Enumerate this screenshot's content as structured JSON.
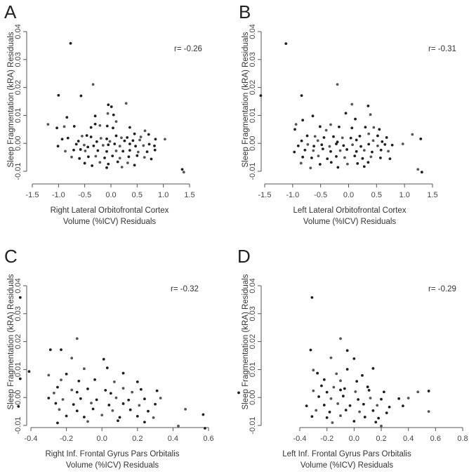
{
  "chart_data": [
    {
      "type": "scatter",
      "panel": "A",
      "annotation": "r= -0.26",
      "xlabel": [
        "Right Lateral Orbitofrontal Cortex",
        "Volume (%ICV) Residuals"
      ],
      "ylabel": "Sleep Fragmentation (kRA) Residuals",
      "xlim": [
        -1.5,
        1.5
      ],
      "ylim": [
        -0.01,
        0.04
      ],
      "xticks": [
        "-1.5",
        "-1.0",
        "-0.5",
        "0.0",
        "0.5",
        "1.0",
        "1.5"
      ],
      "yticks": [
        "-0.01",
        "0.00",
        "0.01",
        "0.02",
        "0.03",
        "0.04"
      ],
      "grid": false,
      "points": [
        [
          -0.77,
          0.0358
        ],
        [
          -0.34,
          0.0211
        ],
        [
          -1.0,
          0.0172
        ],
        [
          -0.57,
          0.017
        ],
        [
          0.29,
          0.0143
        ],
        [
          -0.05,
          0.0138
        ],
        [
          0.01,
          0.0131
        ],
        [
          -0.06,
          0.0107
        ],
        [
          0.05,
          0.0102
        ],
        [
          -0.3,
          0.0098
        ],
        [
          -1.2,
          0.0068
        ],
        [
          -0.84,
          0.0093
        ],
        [
          -0.3,
          0.0069
        ],
        [
          0.1,
          0.0078
        ],
        [
          -0.07,
          0.0062
        ],
        [
          -1.03,
          0.0055
        ],
        [
          -0.89,
          0.006
        ],
        [
          -0.7,
          0.0061
        ],
        [
          -0.38,
          0.0057
        ],
        [
          -0.21,
          0.0064
        ],
        [
          0.04,
          0.0055
        ],
        [
          0.36,
          0.0057
        ],
        [
          0.65,
          0.0045
        ],
        [
          -0.93,
          0.0015
        ],
        [
          -0.82,
          0.0019
        ],
        [
          -0.55,
          0.0026
        ],
        [
          -0.46,
          0.0028
        ],
        [
          -0.38,
          0.0023
        ],
        [
          -0.19,
          0.0018
        ],
        [
          -0.08,
          0.0016
        ],
        [
          0.1,
          0.0027
        ],
        [
          0.2,
          0.002
        ],
        [
          0.31,
          0.0021
        ],
        [
          0.45,
          0.0034
        ],
        [
          0.57,
          0.0023
        ],
        [
          0.72,
          0.0032
        ],
        [
          0.85,
          0.0015
        ],
        [
          1.03,
          0.0015
        ],
        [
          -0.62,
          0.0008
        ],
        [
          -0.27,
          0.0006
        ],
        [
          -0.02,
          0.0007
        ],
        [
          0.26,
          0.0009
        ],
        [
          0.42,
          0.001
        ],
        [
          0.55,
          0.0012
        ],
        [
          -1.01,
          -0.001
        ],
        [
          -0.66,
          -0.0003
        ],
        [
          -0.51,
          -0.0006
        ],
        [
          -0.44,
          -0.0013
        ],
        [
          -0.33,
          -0.0009
        ],
        [
          -0.15,
          -0.0007
        ],
        [
          -0.05,
          -0.0005
        ],
        [
          0.07,
          -0.0002
        ],
        [
          0.17,
          -0.001
        ],
        [
          0.36,
          -0.0002
        ],
        [
          0.47,
          -0.001
        ],
        [
          0.62,
          -0.0008
        ],
        [
          0.73,
          -0.0003
        ],
        [
          0.83,
          -0.0009
        ],
        [
          -0.87,
          -0.0028
        ],
        [
          -0.71,
          -0.0024
        ],
        [
          -0.58,
          -0.0022
        ],
        [
          -0.49,
          -0.0027
        ],
        [
          -0.25,
          -0.0026
        ],
        [
          -0.08,
          -0.0029
        ],
        [
          0.1,
          -0.0027
        ],
        [
          0.23,
          -0.0028
        ],
        [
          0.36,
          -0.0025
        ],
        [
          0.52,
          -0.0031
        ],
        [
          0.69,
          -0.003
        ],
        [
          0.84,
          -0.0024
        ],
        [
          -0.75,
          -0.0049
        ],
        [
          -0.6,
          -0.0054
        ],
        [
          -0.43,
          -0.0048
        ],
        [
          -0.29,
          -0.0046
        ],
        [
          -0.12,
          -0.0052
        ],
        [
          0.03,
          -0.0045
        ],
        [
          0.17,
          -0.0053
        ],
        [
          0.34,
          -0.0048
        ],
        [
          0.5,
          -0.0044
        ],
        [
          0.64,
          -0.005
        ],
        [
          0.77,
          -0.0056
        ],
        [
          -0.5,
          -0.0071
        ],
        [
          -0.21,
          -0.0068
        ],
        [
          -0.05,
          -0.0074
        ],
        [
          0.13,
          -0.0066
        ],
        [
          0.32,
          -0.007
        ],
        [
          0.45,
          -0.0078
        ],
        [
          -0.08,
          -0.0087
        ],
        [
          0.21,
          -0.0085
        ],
        [
          -0.36,
          -0.008
        ],
        [
          1.36,
          -0.0093
        ],
        [
          1.39,
          -0.0103
        ]
      ]
    },
    {
      "type": "scatter",
      "panel": "B",
      "annotation": "r= -0.31",
      "xlabel": [
        "Left Lateral Orbitofrontal Cortex",
        "Volume (%ICV) Residuals"
      ],
      "ylabel": "Sleep Fragmentation (kRA) Residuals",
      "xlim": [
        -1.5,
        1.5
      ],
      "ylim": [
        -0.01,
        0.04
      ],
      "xticks": [
        "-1.5",
        "-1.0",
        "-0.5",
        "0.0",
        "0.5",
        "1.0",
        "1.5"
      ],
      "yticks": [
        "-0.01",
        "0.00",
        "0.01",
        "0.02",
        "0.03",
        "0.04"
      ],
      "grid": false,
      "points": [
        [
          -1.12,
          0.0357
        ],
        [
          -0.2,
          0.0211
        ],
        [
          -1.57,
          0.0171
        ],
        [
          -0.84,
          0.0171
        ],
        [
          0.06,
          0.014
        ],
        [
          0.35,
          0.0134
        ],
        [
          -0.05,
          0.0108
        ],
        [
          0.39,
          0.0103
        ],
        [
          -0.64,
          0.0098
        ],
        [
          0.12,
          0.0087
        ],
        [
          -0.94,
          0.0068
        ],
        [
          -0.82,
          0.0083
        ],
        [
          -0.51,
          0.006
        ],
        [
          -0.32,
          0.0067
        ],
        [
          -0.17,
          0.0059
        ],
        [
          -0.96,
          0.005
        ],
        [
          -0.4,
          0.0047
        ],
        [
          0.06,
          0.0055
        ],
        [
          0.3,
          0.0058
        ],
        [
          0.45,
          0.0057
        ],
        [
          0.55,
          0.005
        ],
        [
          -0.74,
          0.0027
        ],
        [
          -0.6,
          0.0025
        ],
        [
          -0.44,
          0.0021
        ],
        [
          -0.27,
          0.0024
        ],
        [
          -0.11,
          0.002
        ],
        [
          0.04,
          0.0019
        ],
        [
          0.2,
          0.0026
        ],
        [
          0.36,
          0.0034
        ],
        [
          0.52,
          0.0027
        ],
        [
          0.68,
          0.0021
        ],
        [
          1.14,
          0.0032
        ],
        [
          1.29,
          0.0016
        ],
        [
          -0.84,
          0.0009
        ],
        [
          -0.55,
          0.001
        ],
        [
          -0.2,
          0.0005
        ],
        [
          0.14,
          0.0012
        ],
        [
          0.44,
          0.001
        ],
        [
          0.6,
          0.0006
        ],
        [
          -0.9,
          -0.0009
        ],
        [
          -0.73,
          -0.0004
        ],
        [
          -0.62,
          -0.001
        ],
        [
          -0.48,
          -0.0005
        ],
        [
          -0.34,
          -0.0011
        ],
        [
          -0.22,
          -0.0002
        ],
        [
          -0.09,
          -0.0008
        ],
        [
          0.07,
          -0.0005
        ],
        [
          0.22,
          -0.0011
        ],
        [
          0.36,
          -0.0003
        ],
        [
          0.52,
          -0.0009
        ],
        [
          0.65,
          -0.0004
        ],
        [
          0.78,
          -0.0006
        ],
        [
          0.97,
          -0.0002
        ],
        [
          -0.97,
          -0.0031
        ],
        [
          -0.78,
          -0.0024
        ],
        [
          -0.63,
          -0.0026
        ],
        [
          -0.46,
          -0.002
        ],
        [
          -0.32,
          -0.0029
        ],
        [
          -0.15,
          -0.0026
        ],
        [
          -0.03,
          -0.0022
        ],
        [
          0.14,
          -0.0029
        ],
        [
          0.28,
          -0.0025
        ],
        [
          0.42,
          -0.0031
        ],
        [
          0.58,
          -0.0024
        ],
        [
          0.71,
          -0.0028
        ],
        [
          -0.82,
          -0.0049
        ],
        [
          -0.66,
          -0.0052
        ],
        [
          -0.54,
          -0.0045
        ],
        [
          -0.38,
          -0.0055
        ],
        [
          -0.22,
          -0.0047
        ],
        [
          -0.07,
          -0.0051
        ],
        [
          0.11,
          -0.0045
        ],
        [
          0.25,
          -0.0054
        ],
        [
          0.4,
          -0.0048
        ],
        [
          0.57,
          -0.0052
        ],
        [
          0.74,
          -0.0055
        ],
        [
          -0.85,
          -0.0071
        ],
        [
          -0.51,
          -0.0075
        ],
        [
          -0.31,
          -0.0068
        ],
        [
          -0.02,
          -0.0074
        ],
        [
          0.16,
          -0.0072
        ],
        [
          0.35,
          -0.0068
        ],
        [
          -0.68,
          -0.0088
        ],
        [
          -0.19,
          -0.0086
        ],
        [
          0.28,
          -0.0083
        ],
        [
          1.24,
          -0.0093
        ],
        [
          1.31,
          -0.0103
        ]
      ]
    },
    {
      "type": "scatter",
      "panel": "C",
      "annotation": "r= -0.32",
      "xlabel": [
        "Right Inf. Frontal Gyrus Pars Orbitalis",
        "Volume (%ICV) Residuals"
      ],
      "ylabel": "Sleep Fragmentation (kRA) Residuals",
      "xlim": [
        -0.5,
        0.8
      ],
      "ylim": [
        -0.01,
        0.04
      ],
      "xticks": [
        "-0.4",
        "-0.2",
        "0.0",
        "0.2",
        "0.4",
        "0.6"
      ],
      "yticks": [
        "-0.01",
        "0.00",
        "0.01",
        "0.02",
        "0.03",
        "0.04"
      ],
      "grid": false,
      "points": [
        [
          -0.46,
          0.0358
        ],
        [
          -0.14,
          0.0211
        ],
        [
          -0.29,
          0.0171
        ],
        [
          -0.23,
          0.0171
        ],
        [
          -0.17,
          0.0141
        ],
        [
          0.01,
          0.0137
        ],
        [
          -0.41,
          0.0093
        ],
        [
          -0.1,
          0.0103
        ],
        [
          0.03,
          0.0106
        ],
        [
          -0.46,
          0.0067
        ],
        [
          -0.3,
          0.008
        ],
        [
          -0.2,
          0.0084
        ],
        [
          0.12,
          0.0087
        ],
        [
          -0.23,
          0.0063
        ],
        [
          -0.13,
          0.0059
        ],
        [
          -0.04,
          0.0064
        ],
        [
          0.07,
          0.0056
        ],
        [
          0.2,
          0.0056
        ],
        [
          -0.25,
          0.0037
        ],
        [
          -0.17,
          0.0027
        ],
        [
          -0.08,
          0.0031
        ],
        [
          0.02,
          0.0026
        ],
        [
          0.12,
          0.0033
        ],
        [
          0.22,
          0.0029
        ],
        [
          0.31,
          0.0024
        ],
        [
          -0.27,
          0.0016
        ],
        [
          -0.14,
          0.0019
        ],
        [
          0.05,
          0.0015
        ],
        [
          0.17,
          0.0019
        ],
        [
          0.77,
          0.0017
        ],
        [
          -0.3,
          -0.0002
        ],
        [
          -0.22,
          -0.0007
        ],
        [
          -0.12,
          -0.0004
        ],
        [
          -0.03,
          -0.0008
        ],
        [
          0.08,
          -0.0001
        ],
        [
          0.15,
          -0.0009
        ],
        [
          0.24,
          -0.0005
        ],
        [
          0.33,
          -0.0002
        ],
        [
          -0.26,
          -0.0021
        ],
        [
          -0.16,
          -0.0025
        ],
        [
          -0.06,
          -0.002
        ],
        [
          0.04,
          -0.0027
        ],
        [
          0.12,
          -0.0022
        ],
        [
          0.21,
          -0.0028
        ],
        [
          0.3,
          -0.0024
        ],
        [
          -0.47,
          -0.0032
        ],
        [
          -0.24,
          -0.0043
        ],
        [
          -0.14,
          -0.0048
        ],
        [
          -0.05,
          -0.0041
        ],
        [
          0.06,
          -0.0047
        ],
        [
          0.16,
          -0.0044
        ],
        [
          0.26,
          -0.0049
        ],
        [
          0.47,
          -0.0042
        ],
        [
          -0.2,
          -0.0066
        ],
        [
          -0.1,
          -0.007
        ],
        [
          0.0,
          -0.0063
        ],
        [
          0.1,
          -0.0071
        ],
        [
          0.2,
          -0.0067
        ],
        [
          0.29,
          -0.0072
        ],
        [
          0.57,
          -0.0061
        ],
        [
          -0.25,
          -0.0091
        ],
        [
          -0.08,
          -0.0086
        ],
        [
          0.09,
          -0.0083
        ],
        [
          0.24,
          -0.0088
        ],
        [
          0.43,
          -0.0102
        ],
        [
          0.58,
          -0.011
        ]
      ]
    },
    {
      "type": "scatter",
      "panel": "D",
      "annotation": "r= -0.29",
      "xlabel": [
        "Left Inf. Frontal Gyrus Pars Orbitalis",
        "Volume (%ICV) Residuals"
      ],
      "ylabel": "Sleep Fragmentation (kRA) Residuals",
      "xlim": [
        -0.4,
        0.8
      ],
      "ylim": [
        -0.01,
        0.04
      ],
      "xticks": [
        "-0.4",
        "-0.2",
        "0.0",
        "0.2",
        "0.4",
        "0.6",
        "0.8"
      ],
      "yticks": [
        "-0.01",
        "0.00",
        "0.01",
        "0.02",
        "0.03",
        "0.04"
      ],
      "grid": false,
      "points": [
        [
          -0.31,
          0.0358
        ],
        [
          -0.1,
          0.0211
        ],
        [
          -0.32,
          0.017
        ],
        [
          -0.05,
          0.0168
        ],
        [
          -0.17,
          0.0142
        ],
        [
          0.0,
          0.0139
        ],
        [
          0.14,
          0.0104
        ],
        [
          -0.3,
          0.0098
        ],
        [
          -0.05,
          0.0101
        ],
        [
          -0.27,
          0.0087
        ],
        [
          -0.13,
          0.0085
        ],
        [
          0.06,
          0.0079
        ],
        [
          -0.22,
          0.0064
        ],
        [
          -0.1,
          0.006
        ],
        [
          0.02,
          0.0058
        ],
        [
          -0.24,
          0.0042
        ],
        [
          -0.15,
          0.0037
        ],
        [
          -0.07,
          0.0032
        ],
        [
          0.1,
          0.0038
        ],
        [
          -0.3,
          0.0024
        ],
        [
          -0.2,
          0.0019
        ],
        [
          -0.1,
          0.0027
        ],
        [
          0.01,
          0.0021
        ],
        [
          0.11,
          0.0026
        ],
        [
          0.22,
          0.002
        ],
        [
          0.47,
          0.002
        ],
        [
          0.55,
          0.0023
        ],
        [
          -0.26,
          0.0003
        ],
        [
          -0.17,
          -0.0004
        ],
        [
          -0.08,
          0.0005
        ],
        [
          0.03,
          -0.0007
        ],
        [
          0.12,
          -0.0002
        ],
        [
          0.2,
          -0.0006
        ],
        [
          0.33,
          -0.0004
        ],
        [
          0.4,
          -0.0002
        ],
        [
          -0.35,
          -0.003
        ],
        [
          -0.22,
          -0.0027
        ],
        [
          -0.12,
          -0.0022
        ],
        [
          -0.03,
          -0.0029
        ],
        [
          0.07,
          -0.0024
        ],
        [
          0.17,
          -0.0028
        ],
        [
          0.26,
          -0.0034
        ],
        [
          0.36,
          -0.003
        ],
        [
          -0.28,
          -0.0046
        ],
        [
          -0.18,
          -0.0052
        ],
        [
          -0.06,
          -0.0045
        ],
        [
          0.04,
          -0.0051
        ],
        [
          0.14,
          -0.0047
        ],
        [
          0.24,
          -0.0055
        ],
        [
          0.55,
          -0.005
        ],
        [
          -0.31,
          -0.0068
        ],
        [
          -0.2,
          -0.0072
        ],
        [
          -0.1,
          -0.0065
        ],
        [
          0.08,
          -0.007
        ],
        [
          0.18,
          -0.0074
        ],
        [
          -0.16,
          -0.009
        ],
        [
          0.0,
          -0.0085
        ],
        [
          0.16,
          -0.0088
        ],
        [
          0.2,
          -0.0102
        ]
      ]
    }
  ]
}
